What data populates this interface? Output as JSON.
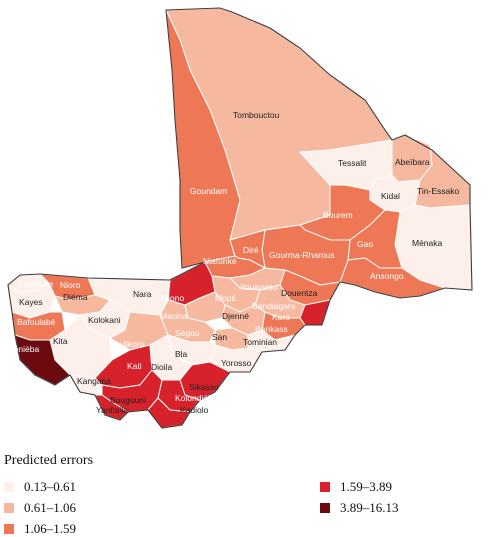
{
  "legend": {
    "title": "Predicted errors",
    "items": [
      {
        "label": "0.13–0.61",
        "color": "#fdf0ea"
      },
      {
        "label": "0.61–1.06",
        "color": "#f7b8a0"
      },
      {
        "label": "1.06–1.59",
        "color": "#ee7755"
      },
      {
        "label": "1.59–3.89",
        "color": "#d7222b"
      },
      {
        "label": "3.89–16.13",
        "color": "#6b0b10"
      }
    ]
  },
  "regions": {
    "tombouctou": "Tombouctou",
    "tessalit": "Tessalit",
    "abeibara": "Abeïbara",
    "goundam": "Goundam",
    "tin_essako": "Tin-Essako",
    "kidal": "Kidal",
    "bourem": "Bourem",
    "menaka": "Ménaka",
    "gao": "Gao",
    "dire": "Diré",
    "gourma_rharous": "Gourma-Rharous",
    "niafunke": "Niafunké",
    "ansongo": "Ansongo",
    "youwarou": "Youwarou",
    "yelimane": "Yélimane",
    "nioro": "Nioro",
    "douentza": "Douentza",
    "nara": "Nara",
    "niono": "Niono",
    "kayes": "Kayes",
    "diema": "Diéma",
    "mopti": "Mopti",
    "bandiagara": "Bandiagara",
    "bafoulabe": "Bafoulabé",
    "kolokani": "Kolokani",
    "djenne": "Djenné",
    "koro": "Koro",
    "macina": "Macina",
    "bankass": "Bankass",
    "segou": "Ségou",
    "keniéba": "Kéniéba",
    "kita": "Kita",
    "koulikoro": "Koulikoro",
    "san": "San",
    "tominian": "Tominian",
    "bla": "Bla",
    "kati": "Kati",
    "yorosso": "Yorosso",
    "dioila": "Dioila",
    "kangaba": "Kangaba",
    "sikasso": "Sikasso",
    "bougouni": "Bougouni",
    "kolondieba": "Kolondiéba",
    "yanfolila": "Yanfolila",
    "kadiolo": "Kadiolo"
  }
}
